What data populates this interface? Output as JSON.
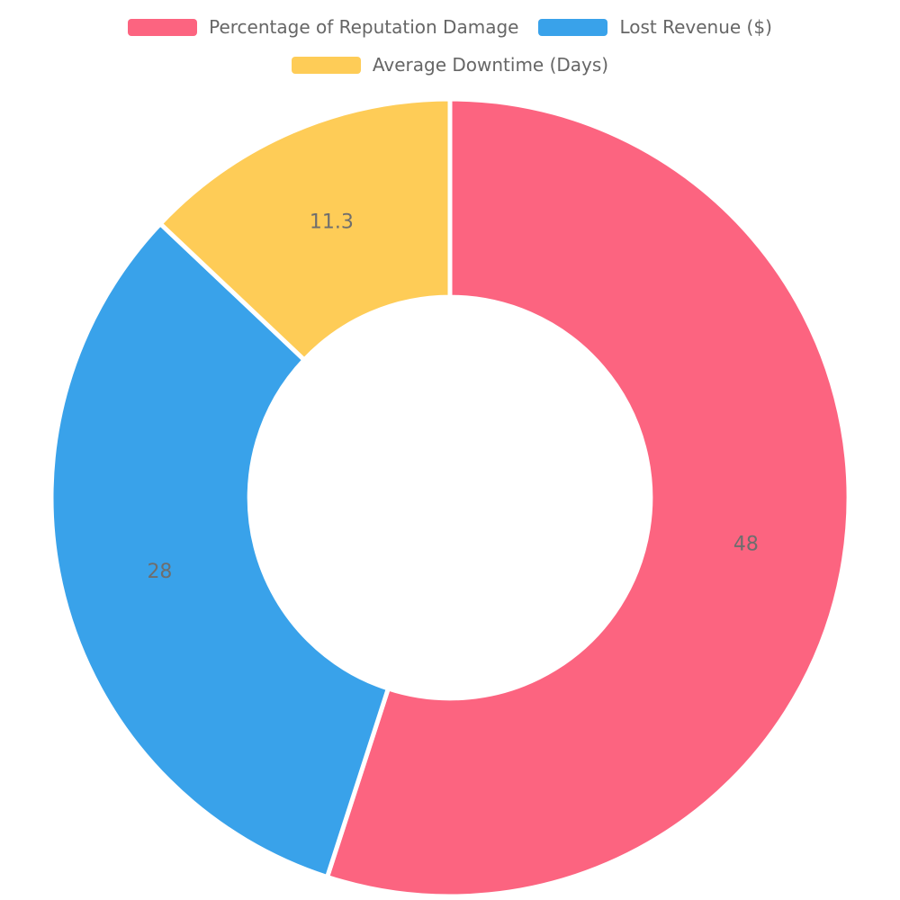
{
  "chart_data": {
    "type": "pie",
    "subtype": "donut",
    "title": "",
    "categories": [
      "Percentage of Reputation Damage",
      "Lost Revenue ($)",
      "Average Downtime (Days)"
    ],
    "values": [
      48,
      28,
      11.3
    ],
    "value_labels": [
      "48",
      "28",
      "11.3"
    ],
    "colors": [
      "#FC6480",
      "#39A2EA",
      "#FECC57"
    ],
    "start_angle_deg": 0,
    "direction": "clockwise",
    "inner_radius_ratio": 0.503,
    "border_color": "#ffffff",
    "border_width": 5,
    "label_color": "#6E6E6E",
    "legend_position": "top",
    "legend_text_color": "#666666",
    "background_color": "#ffffff"
  }
}
